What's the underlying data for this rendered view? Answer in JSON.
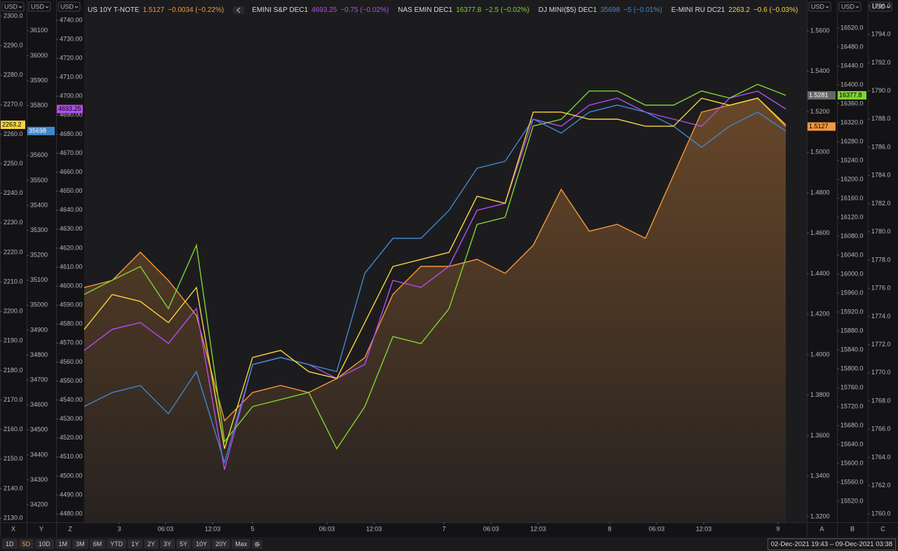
{
  "chart_data": {
    "type": "line",
    "x": [
      0,
      2,
      4,
      6,
      8,
      10,
      12,
      14,
      16,
      18,
      20,
      22,
      24,
      26,
      28,
      30,
      32,
      34,
      36,
      38,
      40,
      42,
      44,
      46,
      48,
      50
    ],
    "xlim": [
      0,
      51.5
    ],
    "xticks": [
      {
        "value": 2.5,
        "label": "3"
      },
      {
        "value": 5.8,
        "label": "06:03"
      },
      {
        "value": 9.15,
        "label": "12:03"
      },
      {
        "value": 12,
        "label": "5"
      },
      {
        "value": 17.3,
        "label": "06:03"
      },
      {
        "value": 20.65,
        "label": "12:03"
      },
      {
        "value": 25.65,
        "label": "7"
      },
      {
        "value": 29,
        "label": "06:03"
      },
      {
        "value": 32.35,
        "label": "12:03"
      },
      {
        "value": 37.45,
        "label": "8"
      },
      {
        "value": 40.8,
        "label": "06:03"
      },
      {
        "value": 44.15,
        "label": "12:03"
      },
      {
        "value": 49.45,
        "label": "9"
      }
    ],
    "y_axes": [
      {
        "letter": "X",
        "unit": "USD",
        "ylim": [
          2128.6,
          2300.7
        ],
        "yticks": [
          {
            "value": 2130,
            "label": "2130.0"
          },
          {
            "value": 2140,
            "label": "2140.0"
          },
          {
            "value": 2150,
            "label": "2150.0"
          },
          {
            "value": 2160,
            "label": "2160.0"
          },
          {
            "value": 2170,
            "label": "2170.0"
          },
          {
            "value": 2180,
            "label": "2180.0"
          },
          {
            "value": 2190,
            "label": "2190.0"
          },
          {
            "value": 2200,
            "label": "2200.0"
          },
          {
            "value": 2210,
            "label": "2210.0"
          },
          {
            "value": 2220,
            "label": "2220.0"
          },
          {
            "value": 2230,
            "label": "2230.0"
          },
          {
            "value": 2240,
            "label": "2240.0"
          },
          {
            "value": 2250,
            "label": "2250.0"
          },
          {
            "value": 2260,
            "label": "2260.0"
          },
          {
            "value": 2270,
            "label": "2270.0"
          },
          {
            "value": 2280,
            "label": "2280.0"
          },
          {
            "value": 2290,
            "label": "2290.0"
          },
          {
            "value": 2300,
            "label": "2300.0"
          }
        ]
      },
      {
        "letter": "Y",
        "unit": "USD",
        "ylim": [
          34130,
          36167
        ],
        "yticks": [
          34200,
          34300,
          34400,
          34500,
          34600,
          34700,
          34800,
          34900,
          35000,
          35100,
          35200,
          35300,
          35400,
          35500,
          35600,
          35700,
          35800,
          35900,
          36000,
          36100
        ]
      },
      {
        "letter": "Z",
        "unit": "USD",
        "ylim": [
          4475.6,
          4743.3
        ],
        "yticks": [
          {
            "value": 4480,
            "label": "4480.00"
          },
          {
            "value": 4490,
            "label": "4490.00"
          },
          {
            "value": 4500,
            "label": "4500.00"
          },
          {
            "value": 4510,
            "label": "4510.00"
          },
          {
            "value": 4520,
            "label": "4520.00"
          },
          {
            "value": 4530,
            "label": "4530.00"
          },
          {
            "value": 4540,
            "label": "4540.00"
          },
          {
            "value": 4550,
            "label": "4550.00"
          },
          {
            "value": 4560,
            "label": "4560.00"
          },
          {
            "value": 4570,
            "label": "4570.00"
          },
          {
            "value": 4580,
            "label": "4580.00"
          },
          {
            "value": 4590,
            "label": "4590.00"
          },
          {
            "value": 4600,
            "label": "4600.00"
          },
          {
            "value": 4610,
            "label": "4610.00"
          },
          {
            "value": 4620,
            "label": "4620.00"
          },
          {
            "value": 4630,
            "label": "4630.00"
          },
          {
            "value": 4640,
            "label": "4640.00"
          },
          {
            "value": 4650,
            "label": "4650.00"
          },
          {
            "value": 4660,
            "label": "4660.00"
          },
          {
            "value": 4670,
            "label": "4670.00"
          },
          {
            "value": 4680,
            "label": "4680.00"
          },
          {
            "value": 4690,
            "label": "4690.00"
          },
          {
            "value": 4700,
            "label": "4700.00"
          },
          {
            "value": 4710,
            "label": "4710.00"
          },
          {
            "value": 4720,
            "label": "4720.00"
          },
          {
            "value": 4730,
            "label": "4730.00"
          },
          {
            "value": 4740,
            "label": "4740.00"
          }
        ]
      },
      {
        "letter": "A",
        "unit": "USD",
        "ylim": [
          1.3172,
          1.5683
        ],
        "ref_tag": 1.5281,
        "yticks": [
          {
            "value": 1.32,
            "label": "1.3200"
          },
          {
            "value": 1.34,
            "label": "1.3400"
          },
          {
            "value": 1.36,
            "label": "1.3600"
          },
          {
            "value": 1.38,
            "label": "1.3800"
          },
          {
            "value": 1.4,
            "label": "1.4000"
          },
          {
            "value": 1.42,
            "label": "1.4200"
          },
          {
            "value": 1.44,
            "label": "1.4400"
          },
          {
            "value": 1.46,
            "label": "1.4600"
          },
          {
            "value": 1.48,
            "label": "1.4800"
          },
          {
            "value": 1.5,
            "label": "1.5000"
          },
          {
            "value": 1.52,
            "label": "1.5200"
          },
          {
            "value": 1.54,
            "label": "1.5400"
          },
          {
            "value": 1.56,
            "label": "1.5600"
          }
        ]
      },
      {
        "letter": "B",
        "unit": "USD",
        "ylim": [
          15475.6,
          16549.6
        ],
        "yticks": [
          {
            "value": 15520,
            "label": "15520.0"
          },
          {
            "value": 15560,
            "label": "15560.0"
          },
          {
            "value": 15600,
            "label": "15600.0"
          },
          {
            "value": 15640,
            "label": "15640.0"
          },
          {
            "value": 15680,
            "label": "15680.0"
          },
          {
            "value": 15720,
            "label": "15720.0"
          },
          {
            "value": 15760,
            "label": "15760.0"
          },
          {
            "value": 15800,
            "label": "15800.0"
          },
          {
            "value": 15840,
            "label": "15840.0"
          },
          {
            "value": 15880,
            "label": "15880.0"
          },
          {
            "value": 15920,
            "label": "15920.0"
          },
          {
            "value": 15960,
            "label": "15960.0"
          },
          {
            "value": 16000,
            "label": "16000.0"
          },
          {
            "value": 16040,
            "label": "16040.0"
          },
          {
            "value": 16080,
            "label": "16080.0"
          },
          {
            "value": 16120,
            "label": "16120.0"
          },
          {
            "value": 16160,
            "label": "16160.0"
          },
          {
            "value": 16200,
            "label": "16200.0"
          },
          {
            "value": 16240,
            "label": "16240.0"
          },
          {
            "value": 16280,
            "label": "16280.0"
          },
          {
            "value": 16320,
            "label": "16320.0"
          },
          {
            "value": 16360,
            "label": "16360.0"
          },
          {
            "value": 16400,
            "label": "16400.0"
          },
          {
            "value": 16440,
            "label": "16440.0"
          },
          {
            "value": 16480,
            "label": "16480.0"
          },
          {
            "value": 16520,
            "label": "16520.0"
          }
        ]
      },
      {
        "letter": "C",
        "unit": "USD",
        "ylim": [
          1759.4,
          1795.45
        ],
        "yticks": [
          {
            "value": 1760,
            "label": "1760.0"
          },
          {
            "value": 1762,
            "label": "1762.0"
          },
          {
            "value": 1764,
            "label": "1764.0"
          },
          {
            "value": 1766,
            "label": "1766.0"
          },
          {
            "value": 1768,
            "label": "1768.0"
          },
          {
            "value": 1770,
            "label": "1770.0"
          },
          {
            "value": 1772,
            "label": "1772.0"
          },
          {
            "value": 1774,
            "label": "1774.0"
          },
          {
            "value": 1776,
            "label": "1776.0"
          },
          {
            "value": 1778,
            "label": "1778.0"
          },
          {
            "value": 1780,
            "label": "1780.0"
          },
          {
            "value": 1782,
            "label": "1782.0"
          },
          {
            "value": 1784,
            "label": "1784.0"
          },
          {
            "value": 1786,
            "label": "1786.0"
          },
          {
            "value": 1788,
            "label": "1788.0"
          },
          {
            "value": 1790,
            "label": "1790.0"
          },
          {
            "value": 1792,
            "label": "1792.0"
          },
          {
            "value": 1794,
            "label": "1794.0"
          },
          {
            "value": 1796,
            "label": "1796.0"
          }
        ]
      }
    ],
    "series": [
      {
        "name": "US 10Y T-NOTE",
        "change": "−0.0034 (−0.22%)",
        "color": "#f4973a",
        "axis": 3,
        "area": true,
        "values": [
          1.4332,
          1.4367,
          1.4506,
          1.4367,
          1.4194,
          1.3674,
          1.3813,
          1.3848,
          1.3813,
          1.3882,
          1.3986,
          1.4298,
          1.4436,
          1.4436,
          1.4471,
          1.4402,
          1.454,
          1.4817,
          1.461,
          1.4644,
          1.4575,
          1.4887,
          1.5198,
          1.5233,
          1.5268,
          1.5127
        ]
      },
      {
        "name": "EMINI S&P DEC1",
        "change": "−0.75 (−0.02%)",
        "color": "#b44cf0",
        "axis": 2,
        "values": [
          4566.1,
          4577.2,
          4580.8,
          4569.8,
          4588.2,
          4503.3,
          4558.7,
          4562.4,
          4558.7,
          4551.3,
          4558.7,
          4603.0,
          4599.3,
          4610.4,
          4639.9,
          4643.6,
          4687.9,
          4684.2,
          4695.3,
          4699.0,
          4691.6,
          4687.9,
          4684.2,
          4699.0,
          4702.7,
          4693.25
        ]
      },
      {
        "name": "NAS EMIN DEC1",
        "change": "−2.5 (−0.02%)",
        "color": "#7fd431",
        "axis": 4,
        "values": [
          15957,
          15987,
          16016,
          15927,
          16061,
          15646,
          15720,
          15735,
          15750,
          15631,
          15720,
          15868,
          15853,
          15927,
          16105,
          16120,
          16313,
          16327,
          16387,
          16387,
          16357,
          16357,
          16387,
          16372,
          16401,
          16377.8
        ]
      },
      {
        "name": "DJ MINI($5) DEC1",
        "change": "−5 (−0.01%)",
        "color": "#4187cc",
        "axis": 1,
        "values": [
          34594,
          34650,
          34678,
          34565,
          34734,
          34369,
          34762,
          34790,
          34762,
          34734,
          35128,
          35268,
          35268,
          35380,
          35549,
          35577,
          35746,
          35690,
          35774,
          35802,
          35774,
          35718,
          35633,
          35718,
          35774,
          35698
        ]
      },
      {
        "name": "E-MINI RU DC21",
        "change": "−0.6 (−0.03%)",
        "color": "#f6d43c",
        "axis": 0,
        "values": [
          2193.9,
          2205.7,
          2203.4,
          2196.2,
          2208.1,
          2153.5,
          2184.4,
          2186.8,
          2179.6,
          2177.3,
          2196.2,
          2215.2,
          2217.6,
          2220.0,
          2239.0,
          2236.6,
          2267.5,
          2267.5,
          2265.1,
          2265.1,
          2262.7,
          2262.7,
          2272.2,
          2269.8,
          2272.2,
          2263.2
        ]
      }
    ]
  },
  "toolbar": {
    "ranges": [
      "1D",
      "5D",
      "10D",
      "1M",
      "3M",
      "6M",
      "YTD",
      "1Y",
      "2Y",
      "3Y",
      "5Y",
      "10Y",
      "20Y",
      "Max"
    ],
    "active_index": 1,
    "date_range": "02-Dec-2021 19:43 – 09-Dec-2021 03:38"
  }
}
